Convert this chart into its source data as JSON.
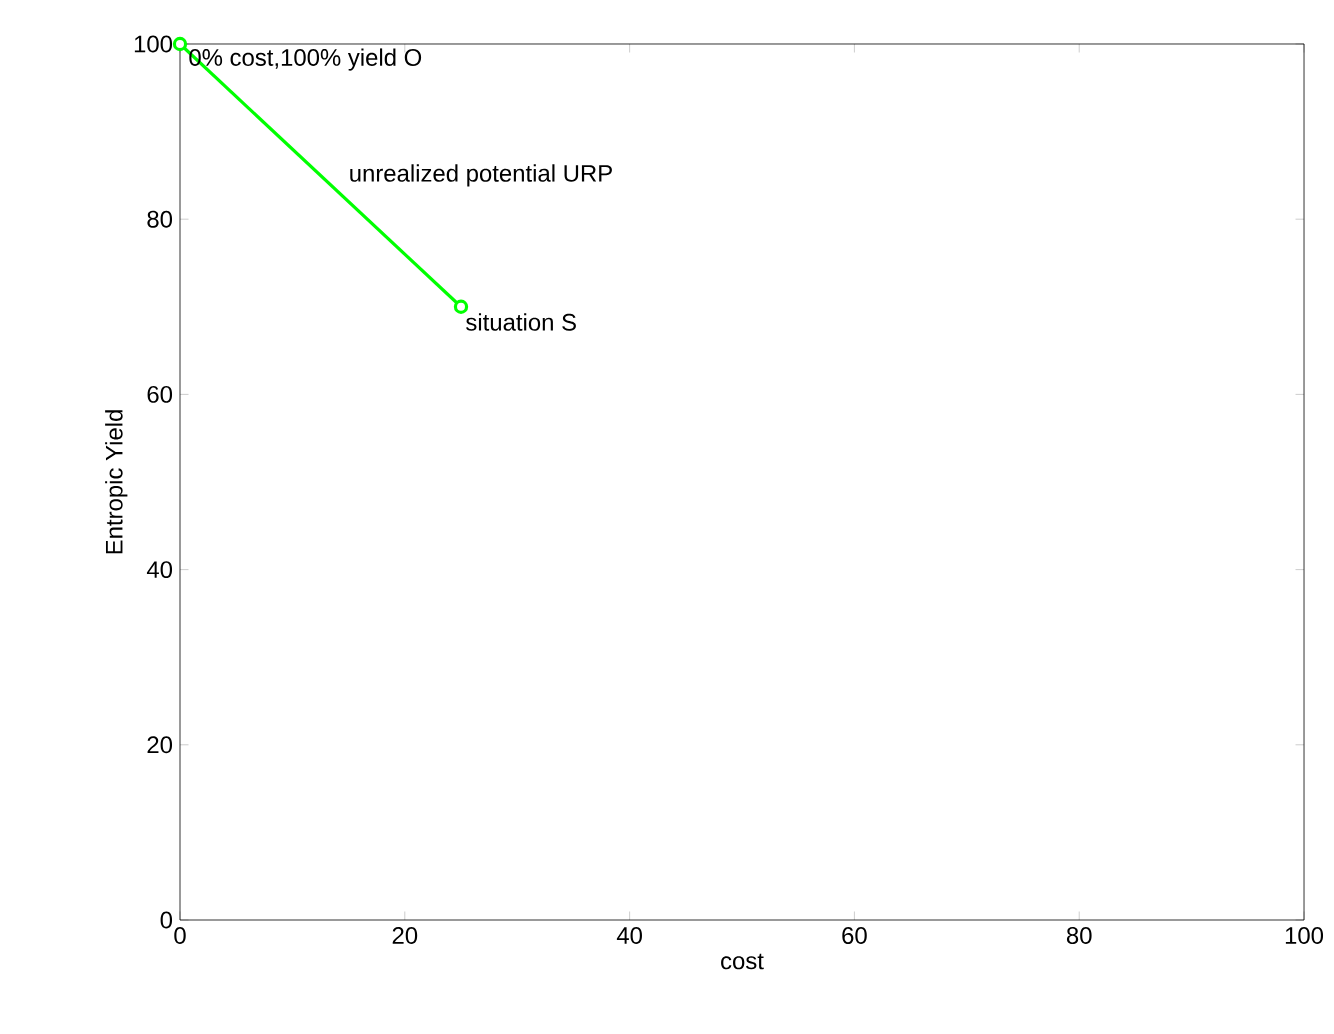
{
  "chart_data": {
    "type": "line",
    "xlabel": "cost",
    "ylabel": "Entropic Yield",
    "x": [
      0,
      25
    ],
    "series": [
      {
        "color": "#00ff00",
        "values": [
          100,
          70
        ]
      }
    ],
    "xlim": [
      0,
      100
    ],
    "ylim": [
      0,
      100
    ],
    "xticks": [
      0,
      20,
      40,
      60,
      80,
      100
    ],
    "yticks": [
      0,
      20,
      40,
      60,
      80,
      100
    ],
    "marker": "circle",
    "line_style": "solid",
    "annotations": [
      {
        "text": "0% cost,100% yield O",
        "x": 0,
        "y": 100
      },
      "unrealized potential URP",
      {
        "text": "situation S",
        "x": 25,
        "y": 70
      }
    ]
  }
}
